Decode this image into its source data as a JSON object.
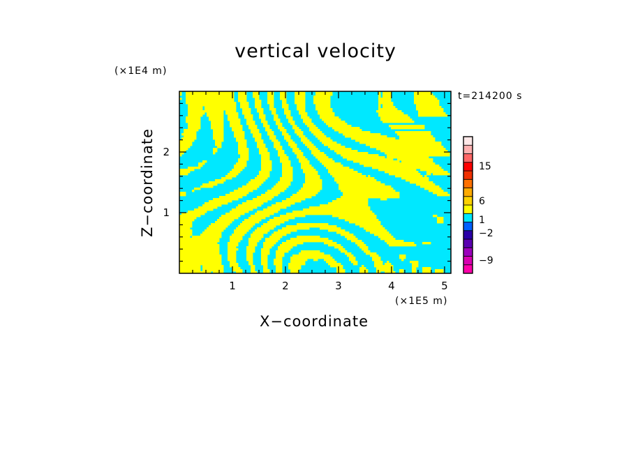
{
  "chart_data": {
    "type": "heatmap",
    "title": "vertical velocity",
    "annotation": "t=214200 s",
    "xlabel": "X−coordinate",
    "ylabel": "Z−coordinate",
    "x_unit": "(×1E5 m)",
    "y_unit": "(×1E4 m)",
    "xlim": [
      0,
      5.12
    ],
    "ylim": [
      0,
      3.0
    ],
    "xticks": [
      {
        "value": 1,
        "label": "1"
      },
      {
        "value": 2,
        "label": "2"
      },
      {
        "value": 3,
        "label": "3"
      },
      {
        "value": 4,
        "label": "4"
      },
      {
        "value": 5,
        "label": "5"
      }
    ],
    "yticks": [
      {
        "value": 1,
        "label": "1"
      },
      {
        "value": 2,
        "label": "2"
      }
    ],
    "colorbar": {
      "levels": [
        {
          "color": "#ff00aa"
        },
        {
          "color": "#d800b0"
        },
        {
          "color": "#9b00bb"
        },
        {
          "color": "#5a00b0"
        },
        {
          "color": "#2a00a8"
        },
        {
          "color": "#0060ff"
        },
        {
          "color": "#00e8ff"
        },
        {
          "color": "#ffff00"
        },
        {
          "color": "#ffd200"
        },
        {
          "color": "#ffaa00"
        },
        {
          "color": "#ff7000"
        },
        {
          "color": "#f03000"
        },
        {
          "color": "#ff0000"
        },
        {
          "color": "#ff6666"
        },
        {
          "color": "#ffb0b0"
        },
        {
          "color": "#ffe8e8"
        }
      ],
      "labels": [
        {
          "value": -9,
          "label": "−9"
        },
        {
          "value": -2,
          "label": "−2"
        },
        {
          "value": 1,
          "label": "1"
        },
        {
          "value": 6,
          "label": "6"
        },
        {
          "value": 15,
          "label": "15"
        }
      ]
    },
    "field_colors": {
      "negative": "#00e8ff",
      "positive": "#ffff00"
    }
  }
}
